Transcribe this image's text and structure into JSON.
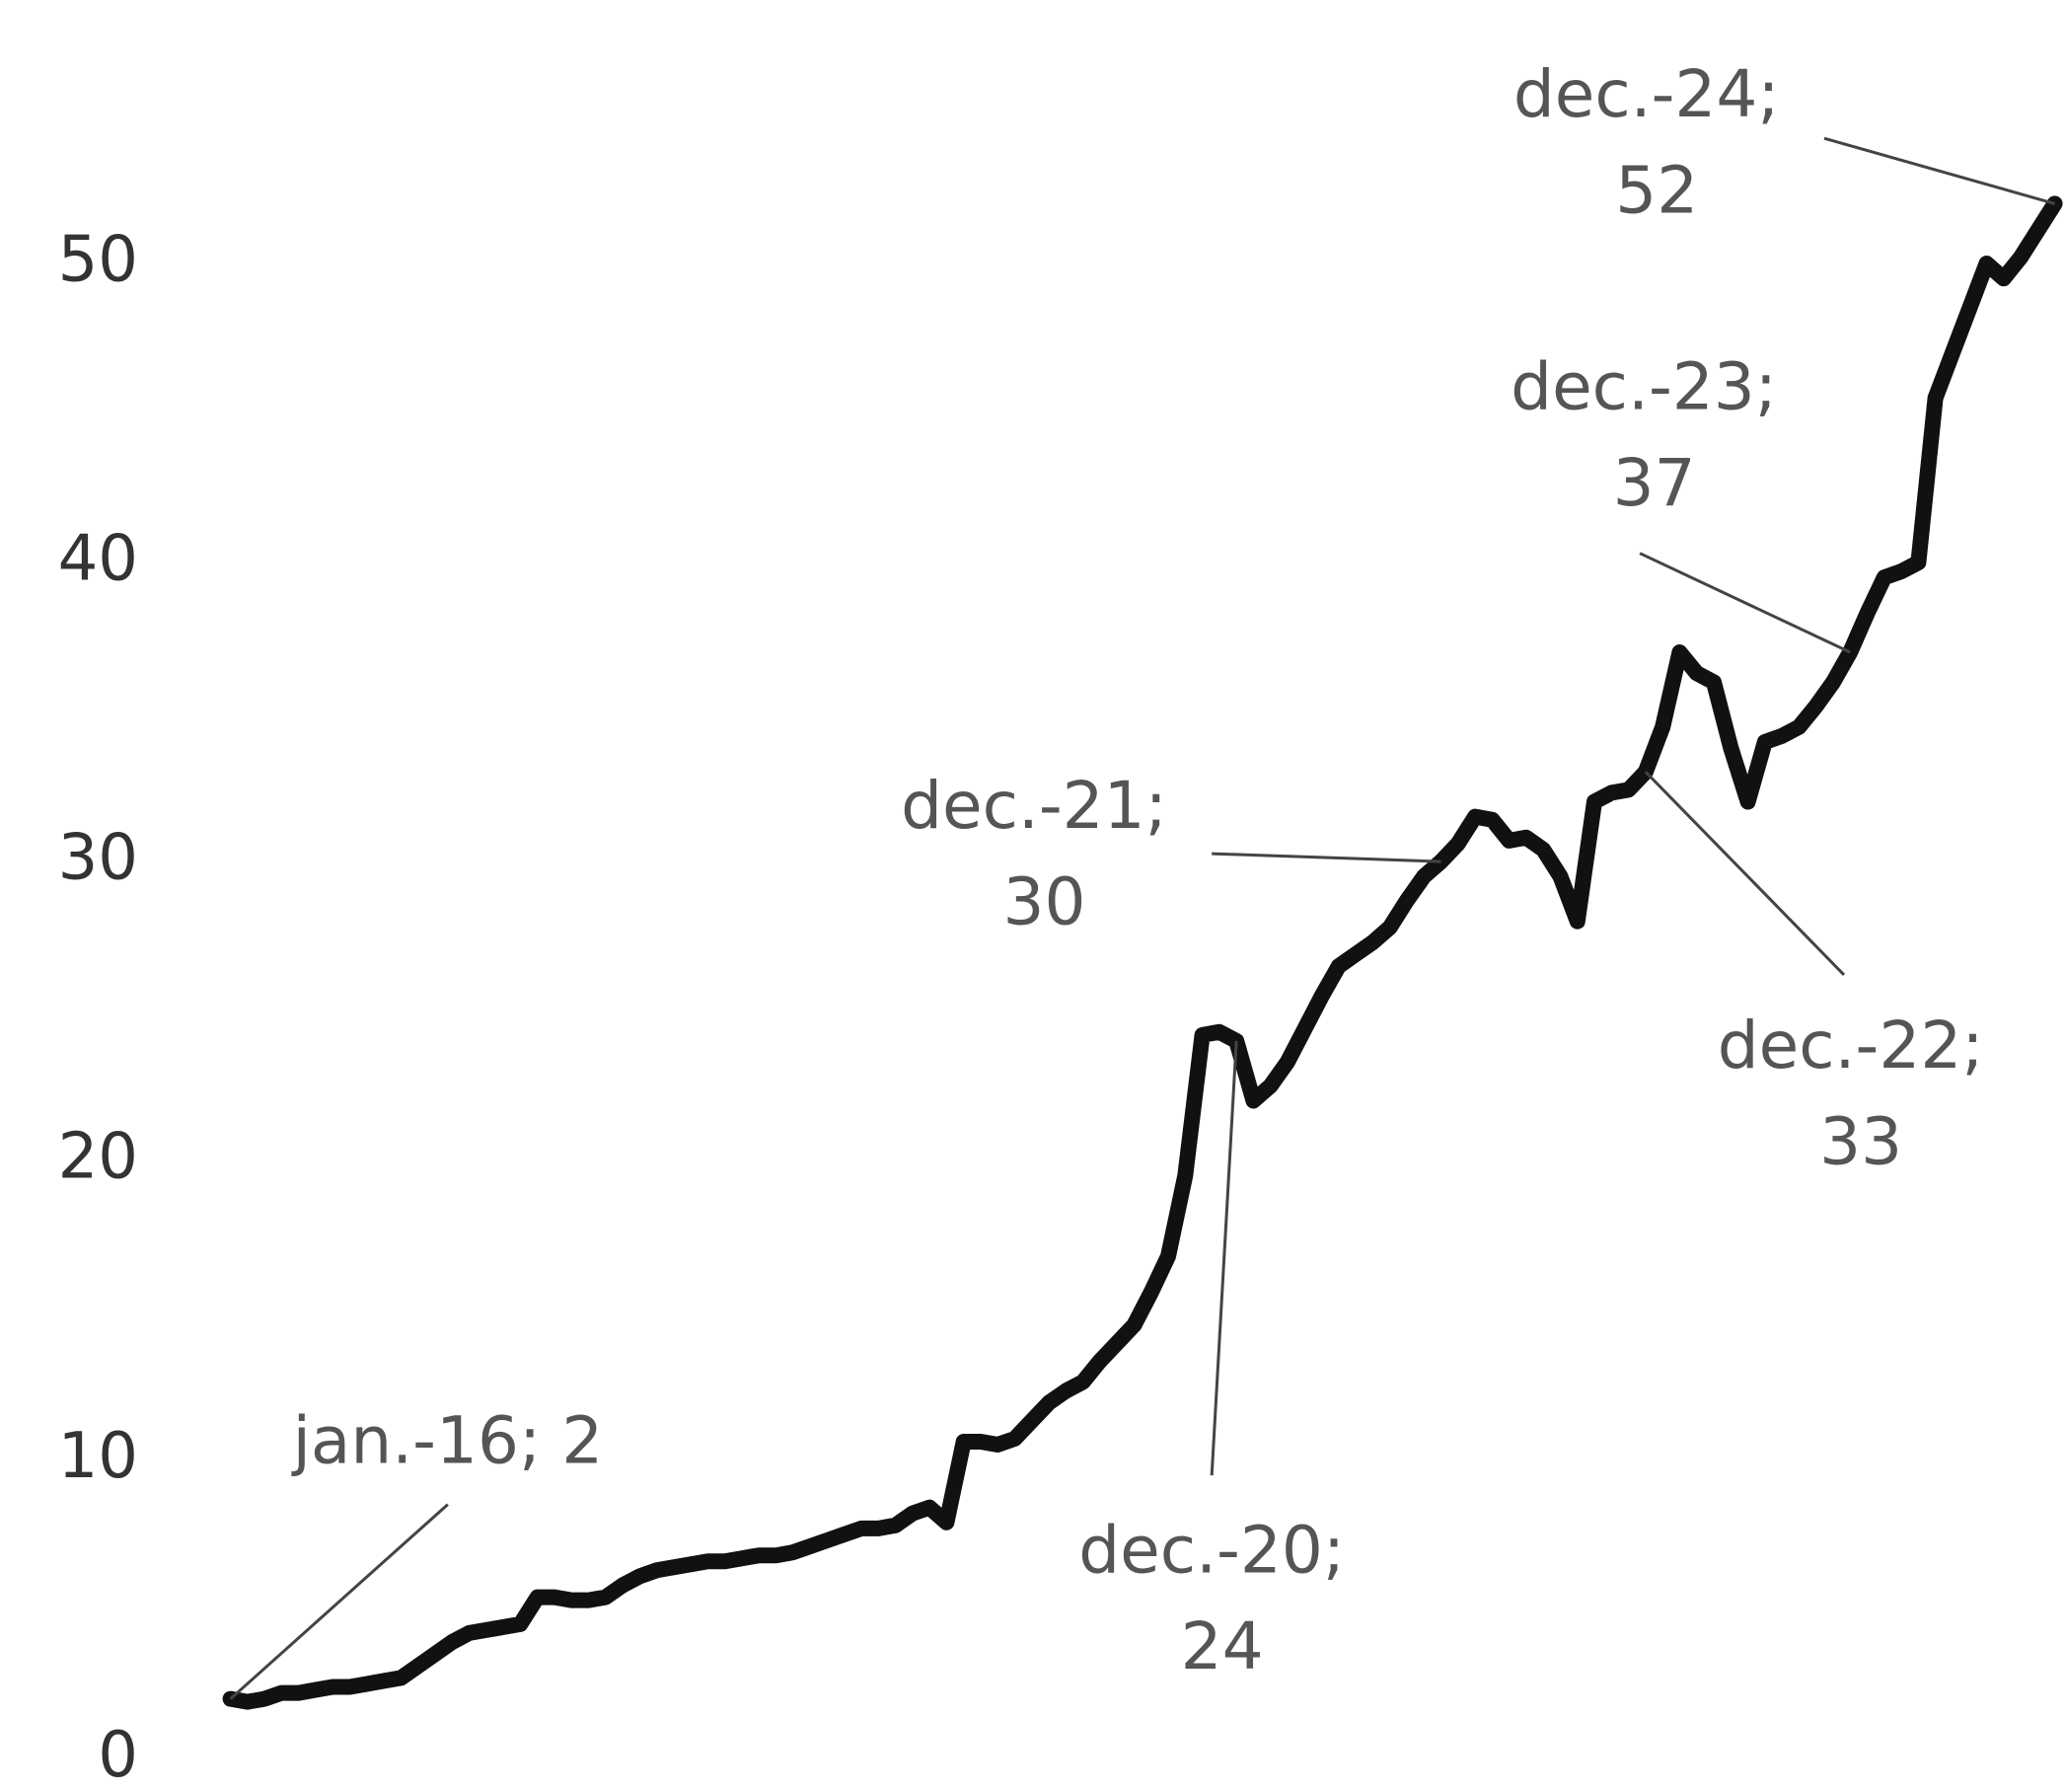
{
  "chart_data": {
    "type": "line",
    "categories": [
      null,
      null,
      null,
      null,
      null,
      null,
      null,
      null,
      null,
      null,
      null,
      null,
      null,
      null,
      null,
      null,
      null,
      null,
      null,
      null,
      null,
      null,
      null,
      null,
      null,
      null,
      null,
      null,
      null,
      null,
      null,
      null,
      null,
      null,
      null,
      null,
      null,
      null,
      null,
      null,
      null,
      null,
      null,
      null,
      null,
      null,
      null,
      null,
      null,
      null,
      null,
      null,
      null,
      null,
      null,
      null,
      null,
      null,
      null,
      null,
      null,
      null,
      null,
      null,
      null,
      null,
      null,
      null,
      null,
      null,
      null,
      null,
      null,
      null,
      null,
      null,
      null,
      null,
      null,
      null,
      null,
      null,
      null,
      null,
      null,
      null,
      null,
      null,
      null,
      null,
      null,
      null,
      null,
      null,
      null,
      null,
      null,
      null,
      null,
      null,
      null,
      null,
      null,
      null,
      null,
      null,
      null,
      null
    ],
    "series": [
      {
        "color": "#111111",
        "values": [
          2,
          1.9,
          2.0,
          2.2,
          2.2,
          2.3,
          2.4,
          2.4,
          2.5,
          2.6,
          2.7,
          3.1,
          3.5,
          3.9,
          4.2,
          4.3,
          4.4,
          4.5,
          5.4,
          5.4,
          5.3,
          5.3,
          5.4,
          5.8,
          6.1,
          6.3,
          6.4,
          6.5,
          6.6,
          6.6,
          6.7,
          6.8,
          6.8,
          6.9,
          7.1,
          7.3,
          7.5,
          7.7,
          7.7,
          7.8,
          8.2,
          8.4,
          7.9,
          10.6,
          10.6,
          10.5,
          10.7,
          11.3,
          11.9,
          12.3,
          12.6,
          13.3,
          13.9,
          14.5,
          15.6,
          16.8,
          19.5,
          24.2,
          24.3,
          24,
          22,
          22.5,
          23.3,
          24.4,
          25.5,
          26.5,
          26.9,
          27.3,
          27.8,
          28.7,
          29.5,
          30,
          30.6,
          31.5,
          31.4,
          30.7,
          30.8,
          30.4,
          29.5,
          28,
          32,
          32.3,
          32.4,
          33,
          34.5,
          37,
          36.3,
          36,
          33.8,
          32,
          34,
          34.2,
          34.5,
          35.2,
          36,
          37,
          38.3,
          39.5,
          39.7,
          40,
          45.5,
          47,
          48.5,
          50,
          49.5,
          50.2,
          51.1,
          52
        ],
        "value_labels": [
          "jan.-16; 2",
          null,
          null,
          null,
          null,
          null,
          null,
          null,
          null,
          null,
          null,
          null,
          null,
          null,
          null,
          null,
          null,
          null,
          null,
          null,
          null,
          null,
          null,
          null,
          null,
          null,
          null,
          null,
          null,
          null,
          null,
          null,
          null,
          null,
          null,
          null,
          null,
          null,
          null,
          null,
          null,
          null,
          null,
          null,
          null,
          null,
          null,
          null,
          null,
          null,
          null,
          null,
          null,
          null,
          null,
          null,
          null,
          null,
          null,
          "dec.-20; 24",
          null,
          null,
          null,
          null,
          null,
          null,
          null,
          null,
          null,
          null,
          null,
          "dec.-21; 30",
          null,
          null,
          null,
          null,
          null,
          null,
          null,
          null,
          null,
          null,
          null,
          "dec.-22; 33",
          null,
          null,
          null,
          null,
          null,
          null,
          null,
          null,
          null,
          null,
          null,
          "dec.-23; 37",
          null,
          null,
          null,
          null,
          null,
          null,
          null,
          null,
          null,
          null,
          null,
          "dec.-24; 52"
        ]
      }
    ],
    "ylim": [
      0,
      50
    ],
    "yticks": [
      0,
      10,
      20,
      30,
      40,
      50
    ],
    "grid": false
  }
}
